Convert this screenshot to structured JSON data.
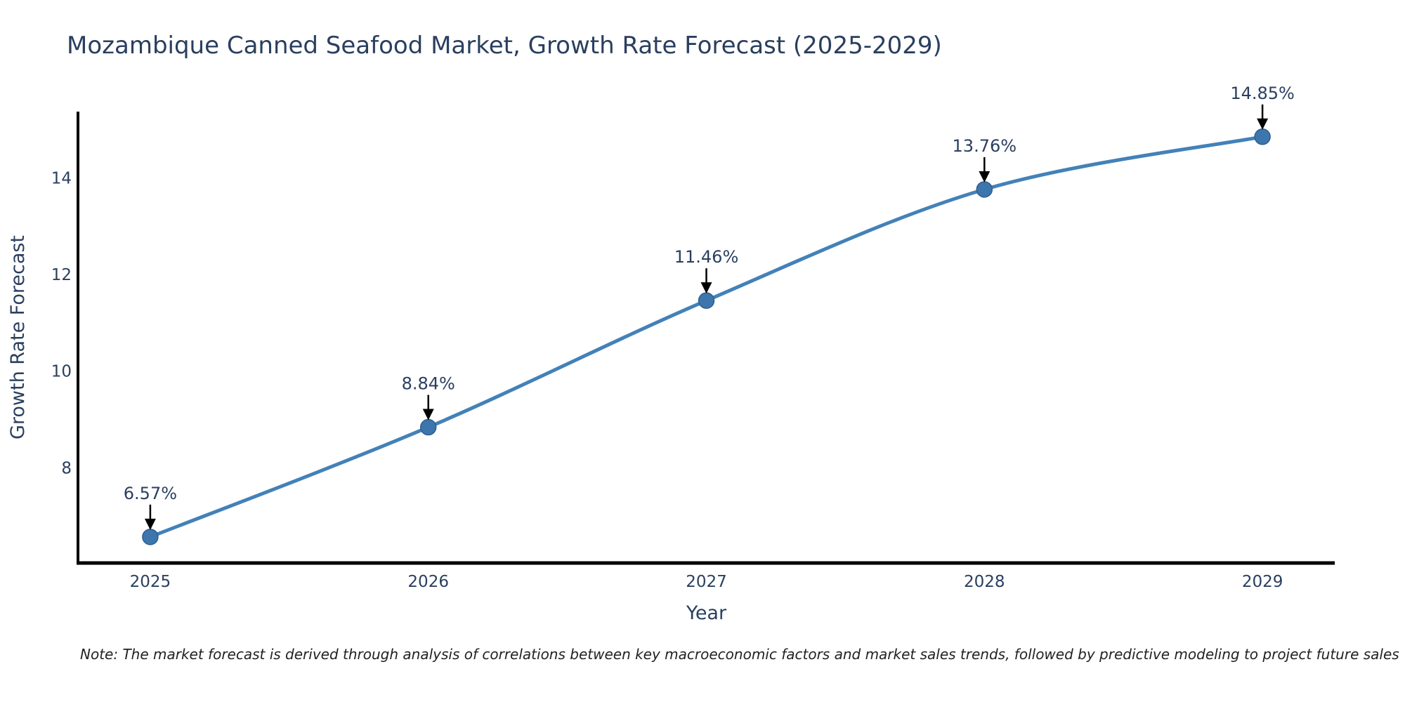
{
  "title": "Mozambique Canned Seafood Market, Growth Rate Forecast (2025-2029)",
  "note": "Note: The market forecast is derived through analysis of correlations between key macroeconomic factors and market sales trends, followed by predictive modeling to project future sales",
  "chart_data": {
    "type": "line",
    "title": "Mozambique Canned Seafood Market, Growth Rate Forecast (2025-2029)",
    "xlabel": "Year",
    "ylabel": "Growth Rate Forecast",
    "x": [
      2025,
      2026,
      2027,
      2028,
      2029
    ],
    "values": [
      6.57,
      8.84,
      11.46,
      13.76,
      14.85
    ],
    "point_labels": [
      "6.57%",
      "8.84%",
      "11.46%",
      "13.76%",
      "14.85%"
    ],
    "xticks": [
      2025,
      2026,
      2027,
      2028,
      2029
    ],
    "yticks": [
      8,
      10,
      12,
      14
    ],
    "xlim": [
      2024.74,
      2029.26
    ],
    "ylim": [
      6.03,
      15.37
    ],
    "grid": false,
    "legend": "none",
    "line_shape": "spline",
    "colors": {
      "line": "#4381b8",
      "marker_fill": "#3c76ad",
      "marker_stroke": "#2f5f8f",
      "text": "#2a3f5f",
      "axis": "#000000",
      "annotation_arrow": "#000000"
    }
  }
}
